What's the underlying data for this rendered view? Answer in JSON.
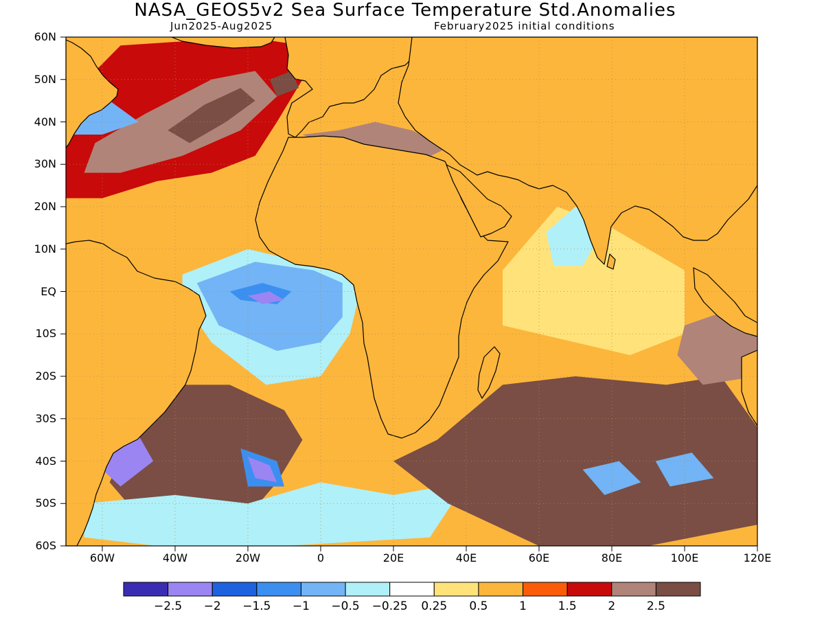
{
  "header": {
    "title": "NASA_GEOS5v2 Sea Surface Temperature Std.Anomalies",
    "period": "Jun2025-Aug2025",
    "init": "February2025 initial conditions"
  },
  "map": {
    "projection": "equirectangular",
    "lon_range": [
      -70,
      120
    ],
    "lat_range": [
      -60,
      60
    ],
    "land_color": "#fcb63c",
    "coastline_color": "#000000",
    "grid": "dotted",
    "lat_labels": [
      {
        "lat": 60,
        "label": "60N"
      },
      {
        "lat": 50,
        "label": "50N"
      },
      {
        "lat": 40,
        "label": "40N"
      },
      {
        "lat": 30,
        "label": "30N"
      },
      {
        "lat": 20,
        "label": "20N"
      },
      {
        "lat": 10,
        "label": "10N"
      },
      {
        "lat": 0,
        "label": "EQ"
      },
      {
        "lat": -10,
        "label": "10S"
      },
      {
        "lat": -20,
        "label": "20S"
      },
      {
        "lat": -30,
        "label": "30S"
      },
      {
        "lat": -40,
        "label": "40S"
      },
      {
        "lat": -50,
        "label": "50S"
      },
      {
        "lat": -60,
        "label": "60S"
      }
    ],
    "lon_labels": [
      {
        "lon": -60,
        "label": "60W"
      },
      {
        "lon": -40,
        "label": "40W"
      },
      {
        "lon": -20,
        "label": "20W"
      },
      {
        "lon": 0,
        "label": "0"
      },
      {
        "lon": 20,
        "label": "20E"
      },
      {
        "lon": 40,
        "label": "40E"
      },
      {
        "lon": 60,
        "label": "60E"
      },
      {
        "lon": 80,
        "label": "80E"
      },
      {
        "lon": 100,
        "label": "100E"
      },
      {
        "lon": 120,
        "label": "120E"
      }
    ]
  },
  "colorbar": {
    "colors": [
      "#3a2db3",
      "#9b85f2",
      "#1e62e0",
      "#3b8ff0",
      "#72b4f5",
      "#b0f0f8",
      "#ffffff",
      "#ffe37a",
      "#fcb63c",
      "#fa5c0a",
      "#c80a0a",
      "#b08479",
      "#7a4e44"
    ],
    "labels": [
      "-2.5",
      "-2",
      "-1.5",
      "-1",
      "-0.5",
      "-0.25",
      "0.25",
      "0.5",
      "1",
      "1.5",
      "2",
      "2.5"
    ]
  },
  "anomaly_patches": [
    {
      "region": "north-atlantic-warm",
      "level": 1.5,
      "points": [
        [
          -70,
          45
        ],
        [
          -55,
          58
        ],
        [
          -20,
          60
        ],
        [
          -5,
          58
        ],
        [
          -5,
          50
        ],
        [
          -12,
          40
        ],
        [
          -18,
          32
        ],
        [
          -30,
          28
        ],
        [
          -45,
          26
        ],
        [
          -60,
          22
        ],
        [
          -70,
          22
        ]
      ]
    },
    {
      "region": "north-atlantic-core",
      "level": 2,
      "points": [
        [
          -62,
          35
        ],
        [
          -48,
          42
        ],
        [
          -30,
          50
        ],
        [
          -18,
          52
        ],
        [
          -12,
          46
        ],
        [
          -22,
          38
        ],
        [
          -38,
          32
        ],
        [
          -55,
          28
        ],
        [
          -65,
          28
        ]
      ]
    },
    {
      "region": "north-atlantic-peak",
      "level": 2.5,
      "points": [
        [
          -42,
          38
        ],
        [
          -32,
          44
        ],
        [
          -22,
          48
        ],
        [
          -18,
          45
        ],
        [
          -26,
          40
        ],
        [
          -36,
          35
        ]
      ]
    },
    {
      "region": "north-atlantic-peak-2",
      "level": 2.5,
      "points": [
        [
          -14,
          50
        ],
        [
          -8,
          52
        ],
        [
          -6,
          48
        ],
        [
          -12,
          46
        ]
      ]
    },
    {
      "region": "nw-atlantic-cool",
      "level": -1,
      "points": [
        [
          -70,
          42
        ],
        [
          -58,
          45
        ],
        [
          -50,
          40
        ],
        [
          -60,
          37
        ],
        [
          -70,
          37
        ]
      ]
    },
    {
      "region": "tropical-atlantic-cool",
      "level": -0.5,
      "points": [
        [
          -38,
          4
        ],
        [
          -20,
          10
        ],
        [
          -10,
          8
        ],
        [
          -2,
          6
        ],
        [
          8,
          5
        ],
        [
          10,
          -3
        ],
        [
          8,
          -10
        ],
        [
          0,
          -20
        ],
        [
          -15,
          -22
        ],
        [
          -30,
          -12
        ],
        [
          -38,
          -2
        ]
      ]
    },
    {
      "region": "tropical-atlantic-cool-2",
      "level": -1,
      "points": [
        [
          -34,
          2
        ],
        [
          -18,
          7
        ],
        [
          -2,
          5
        ],
        [
          6,
          2
        ],
        [
          6,
          -6
        ],
        [
          0,
          -12
        ],
        [
          -12,
          -14
        ],
        [
          -28,
          -8
        ]
      ]
    },
    {
      "region": "tropical-atlantic-core",
      "level": -1.5,
      "points": [
        [
          -25,
          0
        ],
        [
          -16,
          2
        ],
        [
          -8,
          0
        ],
        [
          -12,
          -3
        ],
        [
          -22,
          -2
        ]
      ]
    },
    {
      "region": "tropical-atlantic-peak",
      "level": -2.5,
      "points": [
        [
          -20,
          -1
        ],
        [
          -14,
          0
        ],
        [
          -10,
          -2
        ],
        [
          -16,
          -3
        ]
      ]
    },
    {
      "region": "south-atlantic-warm",
      "level": 2.5,
      "points": [
        [
          -45,
          -22
        ],
        [
          -25,
          -22
        ],
        [
          -10,
          -28
        ],
        [
          -5,
          -35
        ],
        [
          -12,
          -45
        ],
        [
          -25,
          -58
        ],
        [
          -45,
          -58
        ],
        [
          -58,
          -45
        ],
        [
          -50,
          -30
        ]
      ]
    },
    {
      "region": "south-atlantic-cool",
      "level": -1.5,
      "points": [
        [
          -22,
          -37
        ],
        [
          -12,
          -40
        ],
        [
          -10,
          -46
        ],
        [
          -20,
          -46
        ]
      ]
    },
    {
      "region": "south-atlantic-peak",
      "level": -2.5,
      "points": [
        [
          -20,
          -39
        ],
        [
          -14,
          -41
        ],
        [
          -12,
          -45
        ],
        [
          -18,
          -44
        ]
      ]
    },
    {
      "region": "sw-atlantic-cool",
      "level": -2.5,
      "points": [
        [
          -58,
          -36
        ],
        [
          -50,
          -34
        ],
        [
          -46,
          -40
        ],
        [
          -55,
          -46
        ],
        [
          -60,
          -42
        ]
      ]
    },
    {
      "region": "southern-ocean-cool",
      "level": -0.5,
      "points": [
        [
          -65,
          -50
        ],
        [
          -40,
          -48
        ],
        [
          -20,
          -50
        ],
        [
          0,
          -45
        ],
        [
          20,
          -48
        ],
        [
          40,
          -45
        ],
        [
          30,
          -58
        ],
        [
          -10,
          -60
        ],
        [
          -45,
          -60
        ],
        [
          -65,
          -58
        ]
      ]
    },
    {
      "region": "indian-ocean-neutral",
      "level": 0.25,
      "points": [
        [
          50,
          5
        ],
        [
          65,
          20
        ],
        [
          80,
          15
        ],
        [
          90,
          10
        ],
        [
          100,
          5
        ],
        [
          100,
          -10
        ],
        [
          85,
          -15
        ],
        [
          70,
          -12
        ],
        [
          50,
          -8
        ]
      ]
    },
    {
      "region": "indian-ocean-cool",
      "level": -0.5,
      "points": [
        [
          62,
          14
        ],
        [
          70,
          20
        ],
        [
          78,
          15
        ],
        [
          72,
          6
        ],
        [
          64,
          6
        ]
      ]
    },
    {
      "region": "south-indian-warm",
      "level": 2.5,
      "points": [
        [
          32,
          -35
        ],
        [
          50,
          -22
        ],
        [
          70,
          -20
        ],
        [
          95,
          -22
        ],
        [
          110,
          -20
        ],
        [
          120,
          -32
        ],
        [
          120,
          -55
        ],
        [
          90,
          -60
        ],
        [
          60,
          -60
        ],
        [
          35,
          -50
        ],
        [
          20,
          -40
        ]
      ]
    },
    {
      "region": "south-indian-cool",
      "level": -1,
      "points": [
        [
          72,
          -42
        ],
        [
          82,
          -40
        ],
        [
          88,
          -45
        ],
        [
          78,
          -48
        ]
      ]
    },
    {
      "region": "south-indian-cool-2",
      "level": -1,
      "points": [
        [
          92,
          -40
        ],
        [
          102,
          -38
        ],
        [
          108,
          -44
        ],
        [
          96,
          -46
        ]
      ]
    },
    {
      "region": "indonesia-warm",
      "level": 2,
      "points": [
        [
          100,
          -8
        ],
        [
          110,
          -5
        ],
        [
          120,
          -8
        ],
        [
          120,
          -20
        ],
        [
          105,
          -22
        ],
        [
          98,
          -15
        ]
      ]
    },
    {
      "region": "mediterranean-warm",
      "level": 2,
      "points": [
        [
          -5,
          37
        ],
        [
          5,
          38
        ],
        [
          15,
          40
        ],
        [
          25,
          38
        ],
        [
          35,
          34
        ],
        [
          28,
          31
        ],
        [
          15,
          32
        ],
        [
          0,
          35
        ]
      ]
    }
  ]
}
